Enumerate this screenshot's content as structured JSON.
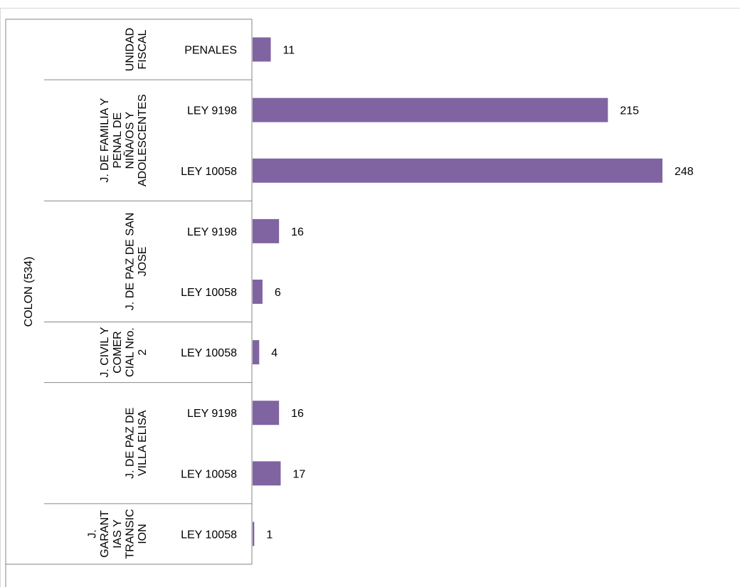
{
  "chart_data": {
    "type": "bar",
    "orientation": "horizontal",
    "bar_color": "#8064A2",
    "region": "COLON (534)",
    "groups": [
      {
        "label_lines": [
          "UNIDAD",
          "FISCAL"
        ],
        "categories": [
          "PENALES"
        ],
        "values": [
          11
        ]
      },
      {
        "label_lines": [
          "J. DE FAMILIA Y",
          "PENAL DE",
          "NIÑA/OS Y",
          "ADOLESCENTES"
        ],
        "categories": [
          "LEY 9198",
          "LEY 10058"
        ],
        "values": [
          215,
          248
        ]
      },
      {
        "label_lines": [
          "J. DE PAZ DE SAN",
          "JOSE"
        ],
        "categories": [
          "LEY 9198",
          "LEY 10058"
        ],
        "values": [
          16,
          6
        ]
      },
      {
        "label_lines": [
          "J. CIVIL Y",
          "COMER",
          "CIAL Nro.",
          "2"
        ],
        "categories": [
          "LEY 10058"
        ],
        "values": [
          4
        ]
      },
      {
        "label_lines": [
          "J. DE PAZ DE",
          "VILLA ELISA"
        ],
        "categories": [
          "LEY 9198",
          "LEY 10058"
        ],
        "values": [
          16,
          17
        ]
      },
      {
        "label_lines": [
          "J.",
          "GARANT",
          "IAS Y",
          "TRANSIC",
          "ION"
        ],
        "categories": [
          "LEY 10058"
        ],
        "values": [
          1
        ]
      }
    ],
    "xlim": [
      0,
      248
    ],
    "grid": false,
    "legend": "none"
  }
}
